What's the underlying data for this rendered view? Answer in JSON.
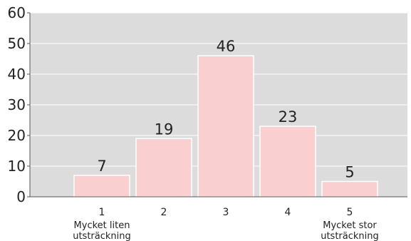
{
  "chart_data": {
    "type": "bar",
    "categories": [
      "1",
      "2",
      "3",
      "4",
      "5"
    ],
    "category_sublabels": [
      [
        "Mycket liten",
        "utsträckning"
      ],
      [
        "",
        ""
      ],
      [
        "",
        ""
      ],
      [
        "",
        ""
      ],
      [
        "Mycket stor",
        "utsträckning"
      ]
    ],
    "values": [
      7,
      19,
      46,
      23,
      5
    ],
    "data_labels": [
      "7",
      "19",
      "46",
      "23",
      "5"
    ],
    "ylim": [
      0,
      60
    ],
    "yticks": [
      0,
      10,
      20,
      30,
      40,
      50,
      60
    ],
    "ytick_labels": [
      "0",
      "10",
      "20",
      "30",
      "40",
      "50",
      "60"
    ],
    "title": "",
    "xlabel": "",
    "ylabel": "",
    "grid": true,
    "legend": "none",
    "colors": {
      "plot_background": "#dcdcdc",
      "bar_fill": "#f9cfcf",
      "bar_stroke": "#ffffff",
      "gridline": "#ffffff",
      "axis": "#555555",
      "text": "#222222"
    }
  }
}
